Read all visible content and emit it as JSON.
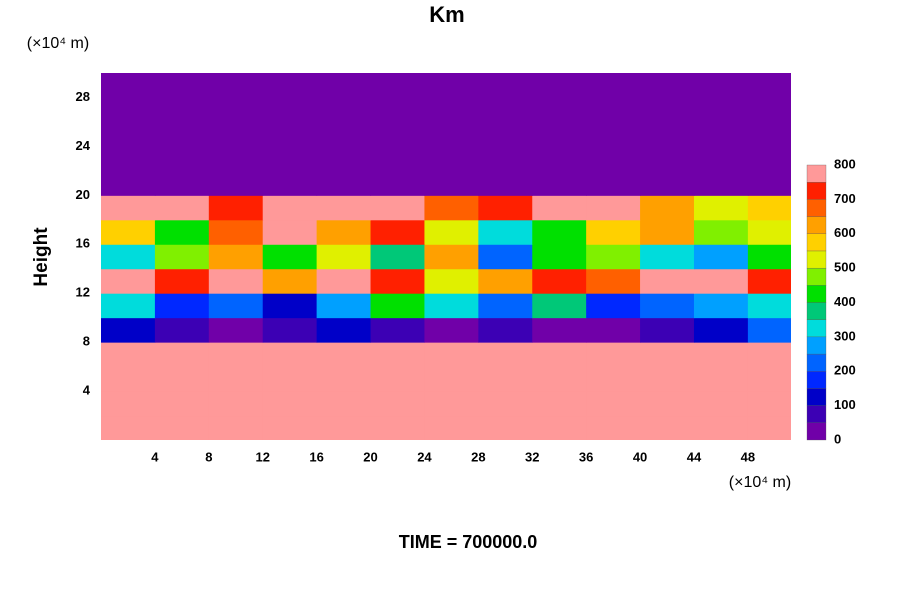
{
  "chart_data": {
    "type": "contour",
    "title": "Km",
    "ylabel": "Height",
    "x_unit": "(×10⁴ m)",
    "y_unit": "(×10⁴ m)",
    "footer": "TIME = 700000.0",
    "xlim": [
      0,
      51.2
    ],
    "ylim": [
      0,
      30
    ],
    "xticks": [
      4,
      8,
      12,
      16,
      20,
      24,
      28,
      32,
      36,
      40,
      44,
      48
    ],
    "yticks": [
      4,
      8,
      12,
      16,
      20,
      24,
      28
    ],
    "x": [
      2,
      6,
      10,
      14,
      18,
      22,
      26,
      30,
      34,
      38,
      42,
      46,
      50
    ],
    "y": [
      1,
      3,
      5,
      7,
      9,
      11,
      13,
      15,
      17,
      19,
      21,
      23,
      25,
      27,
      29
    ],
    "z": [
      [
        800,
        800,
        800,
        800,
        800,
        800,
        800,
        800,
        800,
        800,
        800,
        800,
        800
      ],
      [
        800,
        800,
        800,
        800,
        800,
        800,
        800,
        800,
        800,
        800,
        800,
        800,
        800
      ],
      [
        800,
        800,
        800,
        800,
        800,
        800,
        800,
        800,
        800,
        800,
        800,
        800,
        800
      ],
      [
        800,
        800,
        750,
        800,
        800,
        800,
        800,
        750,
        800,
        800,
        800,
        800,
        800
      ],
      [
        100,
        50,
        0,
        50,
        100,
        50,
        0,
        50,
        0,
        0,
        50,
        100,
        200
      ],
      [
        300,
        150,
        200,
        100,
        250,
        400,
        300,
        200,
        350,
        150,
        200,
        250,
        300
      ],
      [
        800,
        700,
        800,
        600,
        750,
        700,
        500,
        600,
        700,
        650,
        800,
        750,
        700
      ],
      [
        300,
        450,
        600,
        400,
        500,
        350,
        600,
        200,
        400,
        450,
        300,
        250,
        400
      ],
      [
        550,
        400,
        650,
        800,
        600,
        700,
        500,
        300,
        400,
        550,
        600,
        450,
        500
      ],
      [
        750,
        800,
        700,
        800,
        750,
        800,
        650,
        700,
        750,
        800,
        600,
        500,
        550
      ],
      [
        0,
        0,
        0,
        0,
        0,
        0,
        0,
        0,
        0,
        0,
        0,
        0,
        0
      ],
      [
        0,
        0,
        0,
        0,
        0,
        0,
        0,
        0,
        0,
        0,
        0,
        0,
        0
      ],
      [
        0,
        0,
        0,
        0,
        0,
        0,
        0,
        0,
        0,
        0,
        0,
        0,
        0
      ],
      [
        0,
        0,
        0,
        0,
        0,
        0,
        0,
        0,
        0,
        0,
        0,
        0,
        0
      ],
      [
        0,
        0,
        0,
        0,
        0,
        0,
        0,
        0,
        0,
        0,
        0,
        0,
        0
      ]
    ],
    "colorbar": {
      "levels": [
        0,
        50,
        100,
        150,
        200,
        250,
        300,
        350,
        400,
        450,
        500,
        550,
        600,
        650,
        700,
        750,
        800
      ],
      "colors": [
        "#7000a8",
        "#3c00b4",
        "#0000c8",
        "#0028ff",
        "#0064ff",
        "#00a0ff",
        "#00dcdc",
        "#00c878",
        "#00e000",
        "#80f000",
        "#e0f000",
        "#ffd000",
        "#ffa000",
        "#ff6000",
        "#ff2000",
        "#ff9999"
      ],
      "ticks": [
        0,
        100,
        200,
        300,
        400,
        500,
        600,
        700,
        800
      ]
    }
  }
}
